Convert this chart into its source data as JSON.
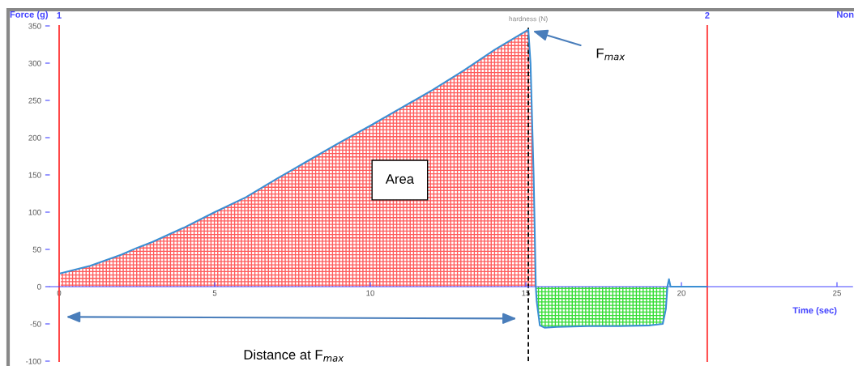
{
  "chart_data": {
    "type": "line",
    "xlabel": "Time (sec)",
    "ylabel": "Force (g)",
    "xlim": [
      -0.3,
      25.5
    ],
    "xticks": [
      0,
      5,
      10,
      15,
      20,
      25
    ],
    "ylim": [
      -100,
      350
    ],
    "yticks": [
      -100,
      -50,
      0,
      50,
      100,
      150,
      200,
      250,
      300,
      350
    ],
    "grid": false,
    "legend": false,
    "series": [
      {
        "type": "area",
        "color": "#ff5a5a",
        "x": [
          0.05,
          1,
          2,
          2.5,
          3,
          4,
          5,
          6,
          7,
          7.5,
          8,
          9,
          10,
          11,
          12,
          12.5,
          13,
          14,
          15.08,
          15.15,
          15.25,
          15.32
        ],
        "values": [
          18,
          28,
          43,
          52,
          60,
          79,
          100,
          120,
          145,
          157,
          169,
          193,
          216,
          240,
          264,
          277,
          290,
          318,
          345,
          300,
          150,
          0
        ]
      },
      {
        "type": "area",
        "color": "#33dd33",
        "x": [
          15.32,
          15.35,
          15.45,
          15.6,
          16,
          17,
          18,
          19,
          19.4,
          19.5,
          19.55
        ],
        "values": [
          0,
          -20,
          -52,
          -55,
          -54,
          -53,
          -53,
          -52,
          -50,
          -30,
          0
        ]
      },
      {
        "color": "#3b8fd4",
        "x": [
          0.05,
          1,
          2,
          2.5,
          3,
          4,
          5,
          6,
          7,
          7.5,
          8,
          9,
          10,
          11,
          12,
          12.5,
          13,
          14,
          15.08,
          15.15,
          15.25,
          15.32,
          15.35,
          15.45,
          15.6,
          16,
          17,
          18,
          19,
          19.4,
          19.5,
          19.55,
          19.6,
          19.65,
          20,
          20.8
        ],
        "values": [
          18,
          28,
          43,
          52,
          60,
          79,
          100,
          120,
          145,
          157,
          169,
          193,
          216,
          240,
          264,
          277,
          290,
          318,
          345,
          300,
          150,
          0,
          -20,
          -52,
          -55,
          -54,
          -53,
          -53,
          -52,
          -50,
          -30,
          0,
          10,
          0,
          0,
          0
        ]
      }
    ],
    "ref_lines": [
      {
        "axis": "x",
        "value": 0,
        "color": "#ff3333",
        "line_style": "solid"
      },
      {
        "axis": "x",
        "value": 15.08,
        "label": "hardness (N)",
        "color": "#000000",
        "line_style": "dashed"
      },
      {
        "axis": "x",
        "value": 20.83,
        "color": "#ff3333",
        "line_style": "solid"
      }
    ],
    "annotations": [
      {
        "text": "F$_{max}$",
        "x": 15.08,
        "y": 345
      },
      "Area",
      "Distance at F$_{max}$",
      "Non",
      "1",
      "2"
    ]
  }
}
